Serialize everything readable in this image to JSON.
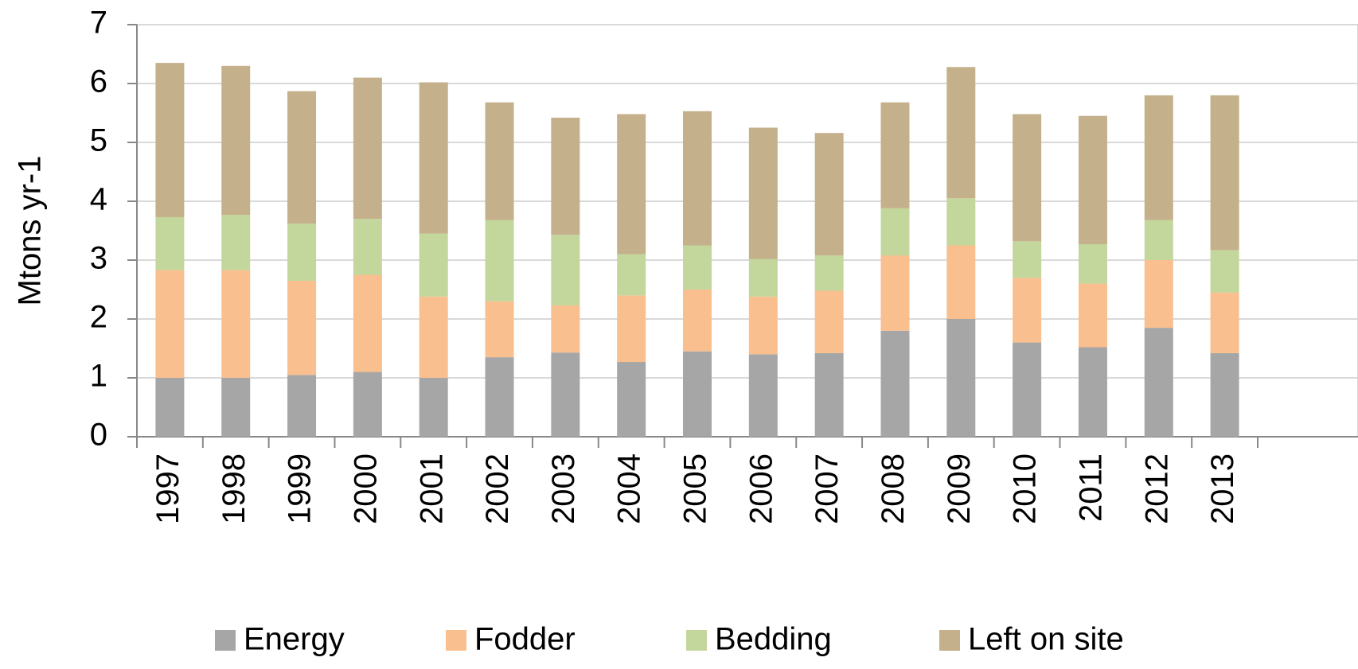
{
  "chart_data": {
    "type": "stacked_bar",
    "y_axis_label": "Mtons yr-1",
    "categories": [
      "1997",
      "1998",
      "1999",
      "2000",
      "2001",
      "2002",
      "2003",
      "2004",
      "2005",
      "2006",
      "2007",
      "2008",
      "2009",
      "2010",
      "2011",
      "2012",
      "2013"
    ],
    "series": [
      {
        "name": "Energy",
        "color": "#a6a6a6",
        "values": [
          1.0,
          1.0,
          1.05,
          1.1,
          1.0,
          1.35,
          1.43,
          1.27,
          1.45,
          1.4,
          1.42,
          1.8,
          2.0,
          1.6,
          1.52,
          1.85,
          1.42
        ]
      },
      {
        "name": "Fodder",
        "color": "#f9bf8f",
        "values": [
          1.83,
          1.83,
          1.6,
          1.65,
          1.38,
          0.95,
          0.8,
          1.13,
          1.05,
          0.98,
          1.06,
          1.28,
          1.25,
          1.1,
          1.08,
          1.15,
          1.03
        ]
      },
      {
        "name": "Bedding",
        "color": "#c3d69b",
        "values": [
          0.9,
          0.94,
          0.97,
          0.95,
          1.07,
          1.38,
          1.2,
          0.7,
          0.75,
          0.64,
          0.6,
          0.8,
          0.8,
          0.62,
          0.67,
          0.68,
          0.72
        ]
      },
      {
        "name": "Left on site",
        "color": "#c4b08b",
        "values": [
          2.62,
          2.53,
          2.25,
          2.4,
          2.57,
          2.0,
          1.99,
          2.38,
          2.28,
          2.23,
          2.08,
          1.8,
          2.23,
          2.16,
          2.18,
          2.12,
          2.63
        ]
      }
    ],
    "ylim": [
      0,
      7
    ],
    "yticks": [
      0,
      1,
      2,
      3,
      4,
      5,
      6,
      7
    ],
    "grid": true,
    "legend": "bottom"
  }
}
